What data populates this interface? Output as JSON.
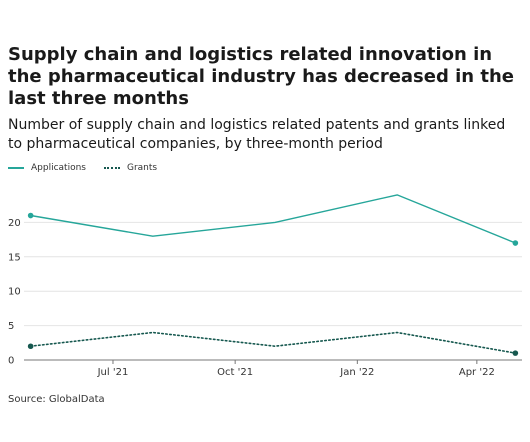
{
  "chart_data": {
    "type": "line",
    "title": "Supply chain and logistics related innovation in the pharmaceutical industry has decreased in the last three months",
    "subtitle": "Number of supply chain and logistics related patents and grants linked to pharmaceutical companies, by three-month period",
    "source": "Source: GlobalData",
    "x": [
      "2021-04-30",
      "2021-07-31",
      "2021-10-31",
      "2022-01-31",
      "2022-04-30"
    ],
    "xticks": [
      {
        "date": "2021-07-01",
        "label": "Jul '21"
      },
      {
        "date": "2021-10-01",
        "label": "Oct '21"
      },
      {
        "date": "2022-01-01",
        "label": "Jan '22"
      },
      {
        "date": "2022-04-01",
        "label": "Apr '22"
      }
    ],
    "yticks": [
      0,
      5,
      10,
      15,
      20
    ],
    "ylim": [
      0,
      25
    ],
    "xlim": [
      "2021-04-25",
      "2022-05-05"
    ],
    "grid": true,
    "legend": "top-left",
    "series": [
      {
        "name": "Applications",
        "values": [
          21,
          18,
          20,
          24,
          17
        ],
        "color": "#26a69a",
        "style": "solid"
      },
      {
        "name": "Grants",
        "values": [
          2,
          4,
          2,
          4,
          1
        ],
        "color": "#16584f",
        "style": "dotted"
      }
    ]
  }
}
